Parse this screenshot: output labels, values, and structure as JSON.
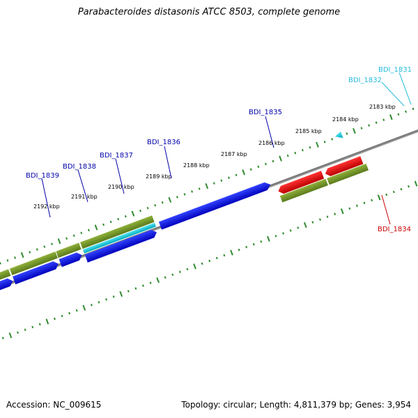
{
  "title": "Parabacteroides distasonis ATCC 8503, complete genome",
  "footer": {
    "accession": "Accession: NC_009615",
    "summary": "Topology: circular; Length: 4,811,379 bp; Genes: 3,954"
  },
  "colors": {
    "backbone": "#808080",
    "tick": "#2e8b2e",
    "gene_olive": "#6b8e23",
    "cds_blue": "#0000ee",
    "cds_red": "#ee0000",
    "cds_cyan": "#00c8dc",
    "label_blue": "#0000aa",
    "label_red": "#cc0000",
    "label_cyan": "#22bbdd"
  },
  "kbp_ticks": [
    "2183 kbp",
    "2184 kbp",
    "2185 kbp",
    "2186 kbp",
    "2187 kbp",
    "2188 kbp",
    "2189 kbp",
    "2190 kbp",
    "2191 kbp",
    "2192 kbp"
  ],
  "gene_labels": [
    {
      "name": "BDI_1831",
      "color": "cyan"
    },
    {
      "name": "BDI_1832",
      "color": "cyan"
    },
    {
      "name": "BDI_1834",
      "color": "red"
    },
    {
      "name": "BDI_1835",
      "color": "blue"
    },
    {
      "name": "BDI_1836",
      "color": "blue"
    },
    {
      "name": "BDI_1837",
      "color": "blue"
    },
    {
      "name": "BDI_1838",
      "color": "blue"
    },
    {
      "name": "BDI_1839",
      "color": "blue"
    }
  ]
}
